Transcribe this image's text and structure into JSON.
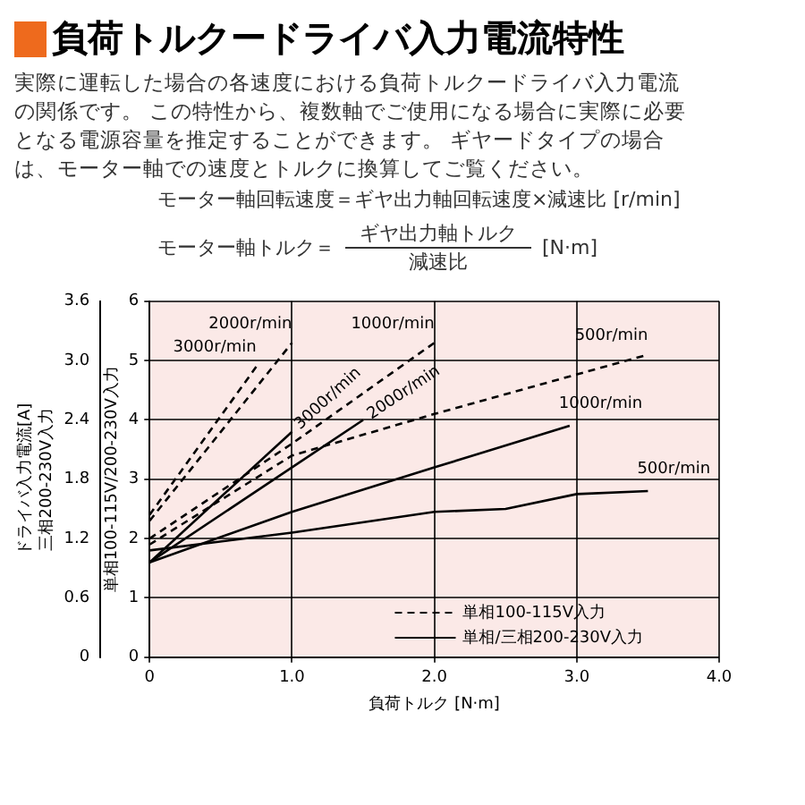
{
  "chart_data": {
    "type": "line",
    "title": "負荷トルクードライバ入力電流特性",
    "subtitle": "実際に運転した場合の各速度における負荷トルクードライバ入力電流の関係です。 この特性から、複数軸でご使用になる場合に実際に必要となる電源容量を推定することができます。 ギヤードタイプの場合は、モーター軸での速度とトルクに換算してご覧ください。",
    "annotations": [
      "モーター軸回転速度＝ギヤ出力軸回転速度×減速比 [r/min]",
      "モーター軸トルク＝",
      "ギヤ出力軸トルク",
      "減速比",
      "[N·m]",
      "単相100-115V入力",
      "単相/三相200-230V入力",
      "ドライバ入力電流[A]"
    ],
    "xlabel": "負荷トルク [N·m]",
    "ylabel": "単相100-115V/200-230V入力",
    "y2label": "三相200-230V入力",
    "xlim": [
      0,
      4
    ],
    "xticks": [
      0,
      {
        "value": 1,
        "label": "1.0"
      },
      {
        "value": 2,
        "label": "2.0"
      },
      {
        "value": 3,
        "label": "3.0"
      },
      {
        "value": 4,
        "label": "4.0"
      }
    ],
    "ylim": [
      0,
      6
    ],
    "yticks": [
      0,
      1,
      2,
      3,
      4,
      5,
      6
    ],
    "y2lim": [
      0,
      3.6
    ],
    "y2ticks": [
      0,
      0.6,
      1.2,
      1.8,
      2.4,
      {
        "value": 3,
        "label": "3.0"
      },
      3.6
    ],
    "grid": true,
    "legend": false,
    "series": [
      {
        "name": "3000r/min",
        "color": "#000000",
        "line_style": "dashed",
        "x": [
          0,
          0.75
        ],
        "values": [
          2.4,
          4.9
        ]
      },
      {
        "name": "2000r/min",
        "color": "#000000",
        "line_style": "dashed",
        "x": [
          0,
          1.0
        ],
        "values": [
          2.3,
          5.3
        ]
      },
      {
        "name": "1000r/min",
        "color": "#000000",
        "line_style": "dashed",
        "x": [
          0,
          1.0,
          2.0
        ],
        "values": [
          2.0,
          3.6,
          5.3
        ]
      },
      {
        "name": "500r/min",
        "color": "#000000",
        "line_style": "dashed",
        "x": [
          0,
          1.0,
          2.0,
          3.5
        ],
        "values": [
          1.9,
          3.4,
          4.1,
          5.1
        ]
      },
      {
        "name": "3000r/min",
        "color": "#000000",
        "line_style": "solid",
        "x": [
          0,
          1.0
        ],
        "values": [
          1.6,
          3.8
        ]
      },
      {
        "name": "2000r/min",
        "color": "#000000",
        "line_style": "solid",
        "x": [
          0,
          1.5
        ],
        "values": [
          1.6,
          4.0
        ]
      },
      {
        "name": "1000r/min",
        "color": "#000000",
        "line_style": "solid",
        "x": [
          0,
          1.0,
          2.0,
          2.95
        ],
        "values": [
          1.6,
          2.45,
          3.2,
          3.9
        ]
      },
      {
        "name": "500r/min",
        "color": "#000000",
        "line_style": "solid",
        "x": [
          0,
          1.0,
          2.0,
          2.5,
          3.0,
          3.5
        ],
        "values": [
          1.8,
          2.1,
          2.45,
          2.5,
          2.75,
          2.8
        ]
      }
    ]
  }
}
